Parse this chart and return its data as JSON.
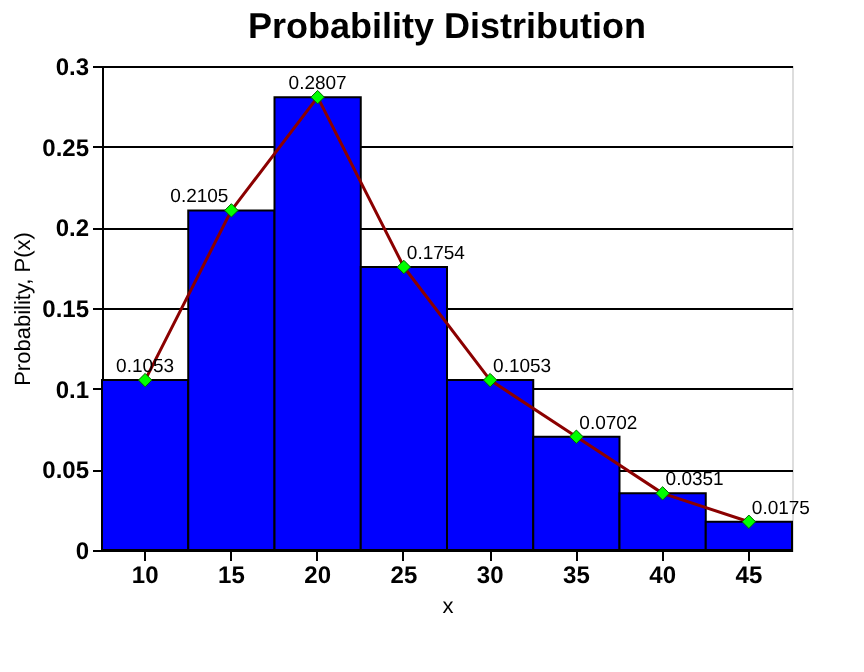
{
  "chart_data": {
    "type": "bar",
    "title": "Probability Distribution",
    "xlabel": "x",
    "ylabel": "Probability, P(x)",
    "categories": [
      "10",
      "15",
      "20",
      "25",
      "30",
      "35",
      "40",
      "45"
    ],
    "series": [
      {
        "type": "bar",
        "color": "#0000ff",
        "values": [
          0.1053,
          0.2105,
          0.2807,
          0.1754,
          0.1053,
          0.0702,
          0.0351,
          0.0175
        ]
      },
      {
        "type": "line",
        "color": "#8b0000",
        "marker": "diamond",
        "colors": [
          "#00ff00",
          "#00ff00",
          "#00ff00",
          "#00ff00",
          "#00ff00",
          "#00ff00",
          "#00ff00",
          "#00ff00"
        ],
        "values": [
          0.1053,
          0.2105,
          0.2807,
          0.1754,
          0.1053,
          0.0702,
          0.0351,
          0.0175
        ],
        "value_labels": [
          "0.1053",
          "0.2105",
          "0.2807",
          "0.1754",
          "0.1053",
          "0.0702",
          "0.0351",
          "0.0175"
        ]
      }
    ],
    "ylim": [
      0,
      0.3
    ],
    "yticks": [
      0,
      0.05,
      0.1,
      0.15,
      0.2,
      0.25,
      0.3
    ],
    "grid": "y"
  }
}
